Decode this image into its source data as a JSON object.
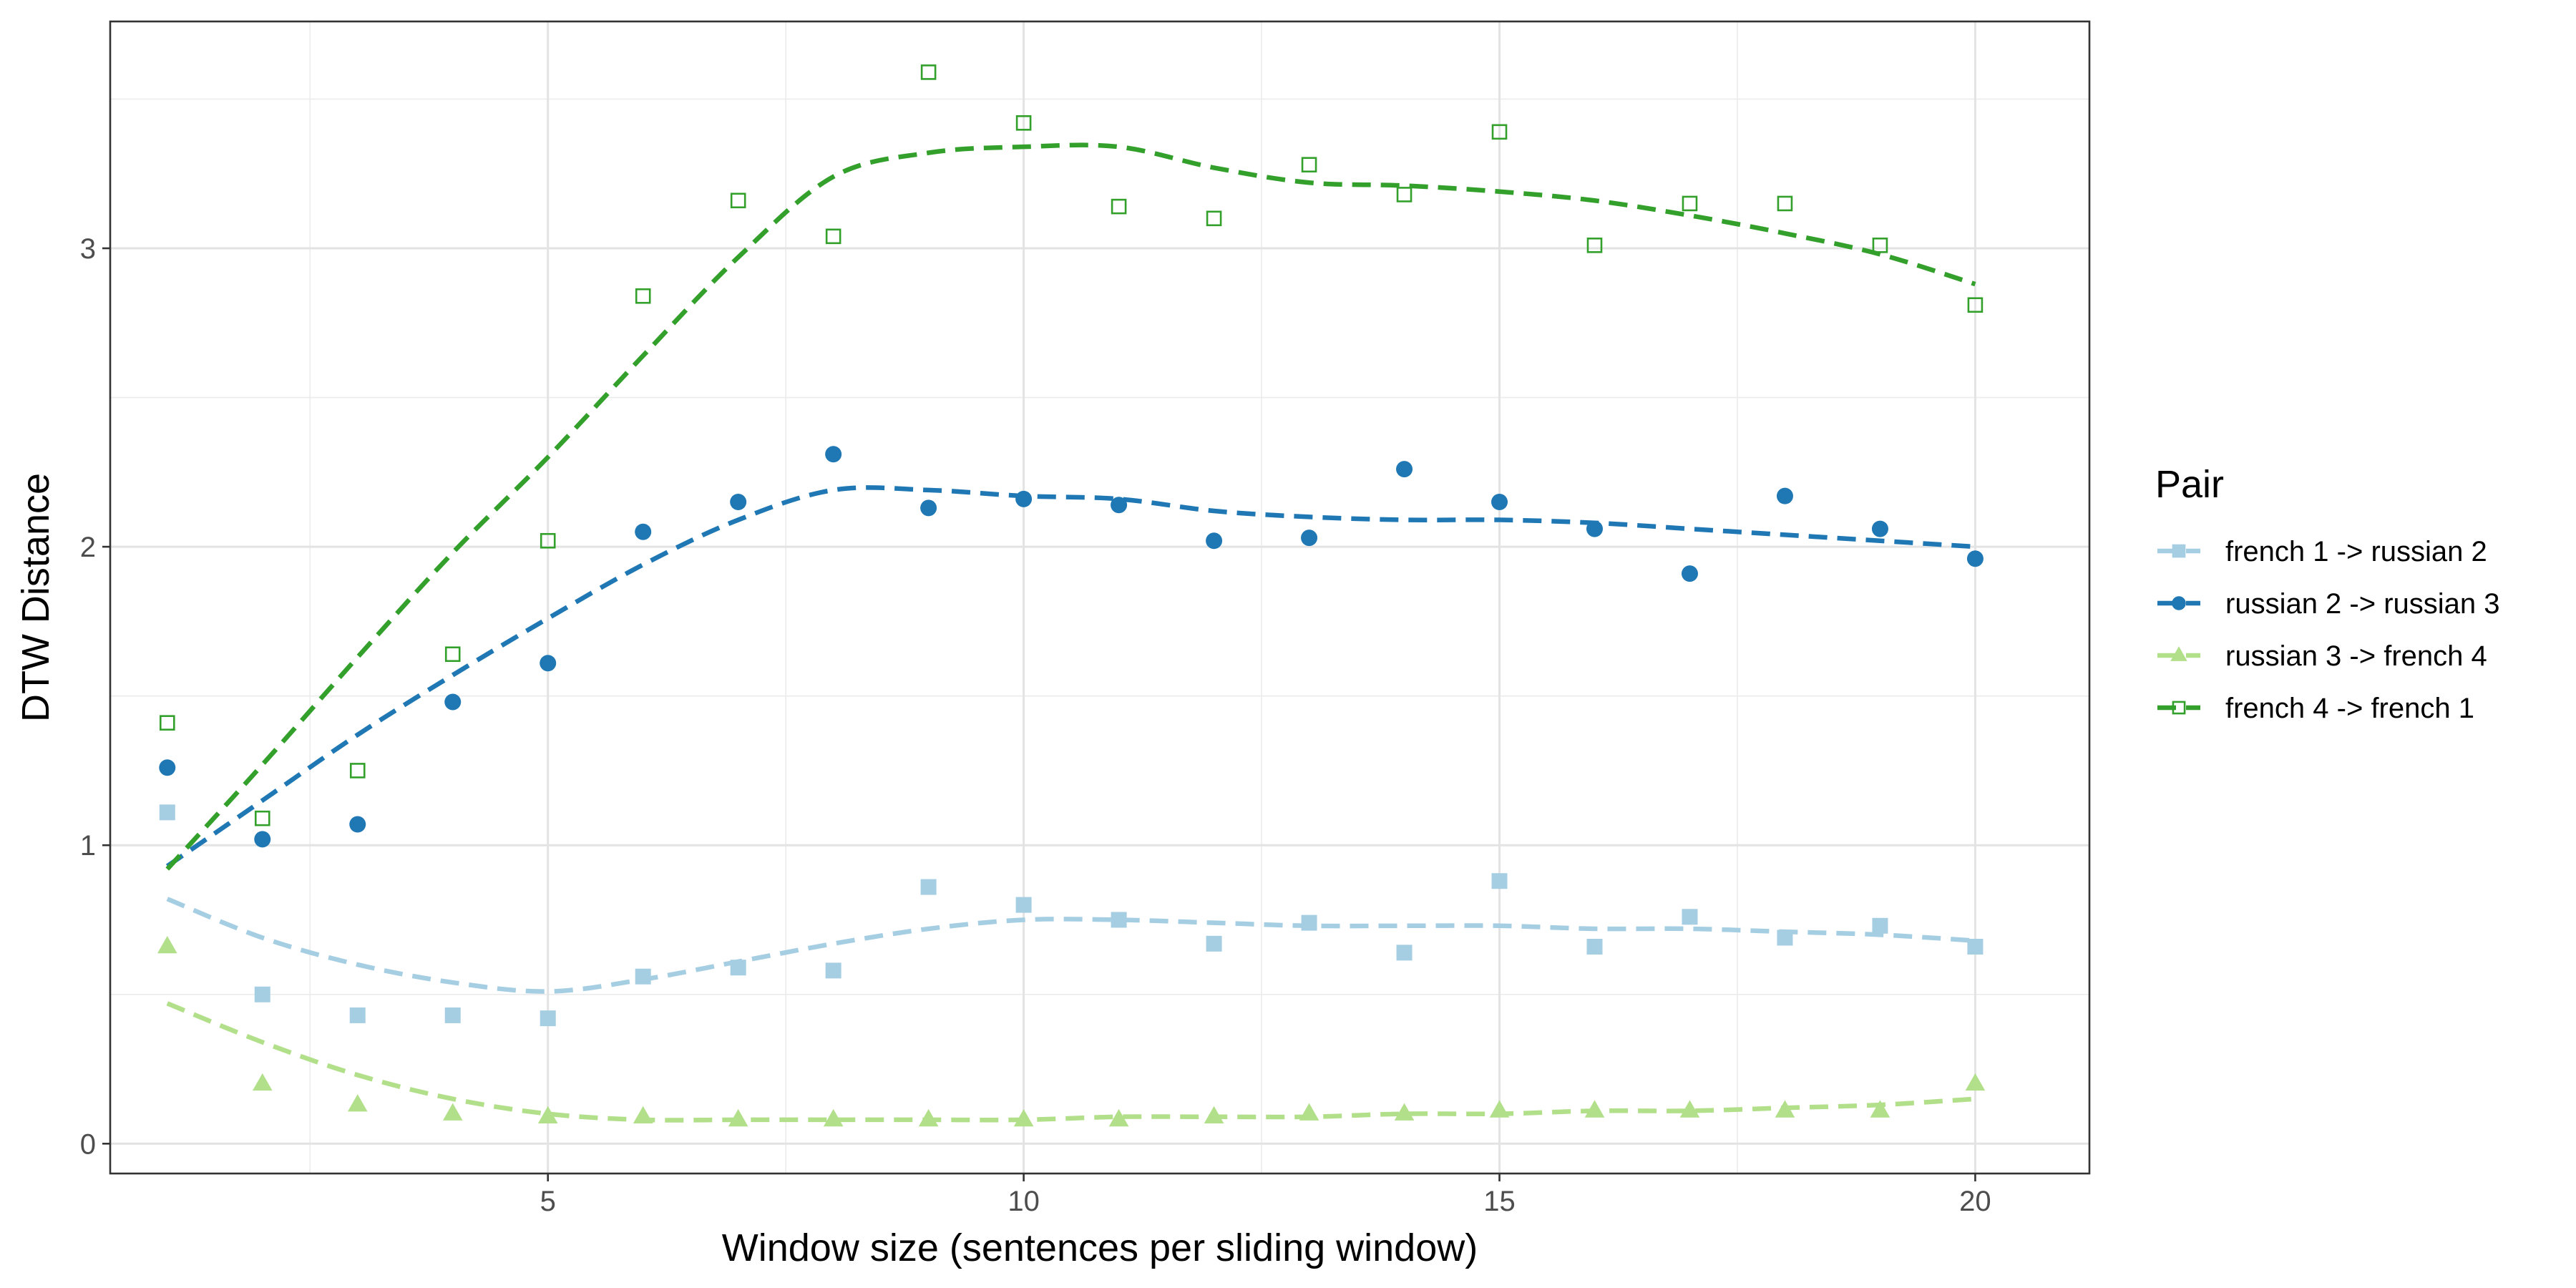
{
  "chart_data": {
    "type": "scatter",
    "title": "",
    "xlabel": "Window size (sentences per sliding window)",
    "ylabel": "DTW Distance",
    "xlim": [
      0.4,
      21.2
    ],
    "ylim": [
      -0.1,
      3.76
    ],
    "x_ticks": [
      5,
      10,
      15,
      20
    ],
    "x_tick_labels": [
      "5",
      "10",
      "15",
      "20"
    ],
    "y_ticks": [
      0,
      1,
      2,
      3
    ],
    "y_tick_labels": [
      "0",
      "1",
      "2",
      "3"
    ],
    "grid": true,
    "legend_title": "Pair",
    "legend_position": "right",
    "series": [
      {
        "name": "french 1 -> russian 2",
        "color": "#a6cee3",
        "marker": "square-filled",
        "x": [
          1,
          2,
          3,
          4,
          5,
          6,
          7,
          8,
          9,
          10,
          11,
          12,
          13,
          14,
          15,
          16,
          17,
          18,
          19,
          20
        ],
        "values": [
          1.11,
          0.5,
          0.43,
          0.43,
          0.42,
          0.56,
          0.59,
          0.58,
          0.86,
          0.8,
          0.75,
          0.67,
          0.74,
          0.64,
          0.88,
          0.66,
          0.76,
          0.69,
          0.73,
          0.66
        ],
        "trend": [
          0.82,
          0.69,
          0.6,
          0.54,
          0.51,
          0.55,
          0.61,
          0.67,
          0.72,
          0.75,
          0.75,
          0.74,
          0.73,
          0.73,
          0.73,
          0.72,
          0.72,
          0.71,
          0.7,
          0.68
        ]
      },
      {
        "name": "russian 2 -> russian 3",
        "color": "#1f78b4",
        "marker": "circle-filled",
        "x": [
          1,
          2,
          3,
          4,
          5,
          6,
          7,
          8,
          9,
          10,
          11,
          12,
          13,
          14,
          15,
          16,
          17,
          18,
          19,
          20
        ],
        "values": [
          1.26,
          1.02,
          1.07,
          1.48,
          1.61,
          2.05,
          2.15,
          2.31,
          2.13,
          2.16,
          2.14,
          2.02,
          2.03,
          2.26,
          2.15,
          2.06,
          1.91,
          2.17,
          2.06,
          1.96
        ],
        "trend": [
          0.93,
          1.15,
          1.37,
          1.57,
          1.76,
          1.94,
          2.09,
          2.19,
          2.19,
          2.17,
          2.16,
          2.12,
          2.1,
          2.09,
          2.09,
          2.08,
          2.06,
          2.04,
          2.02,
          2.0
        ]
      },
      {
        "name": "russian 3 -> french 4",
        "color": "#b2df8a",
        "marker": "triangle-filled",
        "x": [
          1,
          2,
          3,
          4,
          5,
          6,
          7,
          8,
          9,
          10,
          11,
          12,
          13,
          14,
          15,
          16,
          17,
          18,
          19,
          20
        ],
        "values": [
          0.66,
          0.2,
          0.13,
          0.1,
          0.09,
          0.09,
          0.08,
          0.08,
          0.08,
          0.08,
          0.08,
          0.09,
          0.1,
          0.1,
          0.11,
          0.11,
          0.11,
          0.11,
          0.11,
          0.2
        ],
        "trend": [
          0.47,
          0.34,
          0.23,
          0.15,
          0.1,
          0.08,
          0.08,
          0.08,
          0.08,
          0.08,
          0.09,
          0.09,
          0.09,
          0.1,
          0.1,
          0.11,
          0.11,
          0.12,
          0.13,
          0.15
        ]
      },
      {
        "name": "french 4 -> french 1",
        "color": "#33a02c",
        "marker": "square-open",
        "x": [
          1,
          2,
          3,
          4,
          5,
          6,
          7,
          8,
          9,
          10,
          11,
          12,
          13,
          14,
          15,
          16,
          17,
          18,
          19,
          20
        ],
        "values": [
          1.41,
          1.09,
          1.25,
          1.64,
          2.02,
          2.84,
          3.16,
          3.04,
          3.59,
          3.42,
          3.14,
          3.1,
          3.28,
          3.18,
          3.39,
          3.01,
          3.15,
          3.15,
          3.01,
          2.81
        ],
        "trend": [
          0.92,
          1.27,
          1.63,
          1.98,
          2.3,
          2.64,
          2.97,
          3.24,
          3.32,
          3.34,
          3.34,
          3.27,
          3.22,
          3.21,
          3.19,
          3.16,
          3.11,
          3.05,
          2.98,
          2.88
        ]
      }
    ]
  }
}
